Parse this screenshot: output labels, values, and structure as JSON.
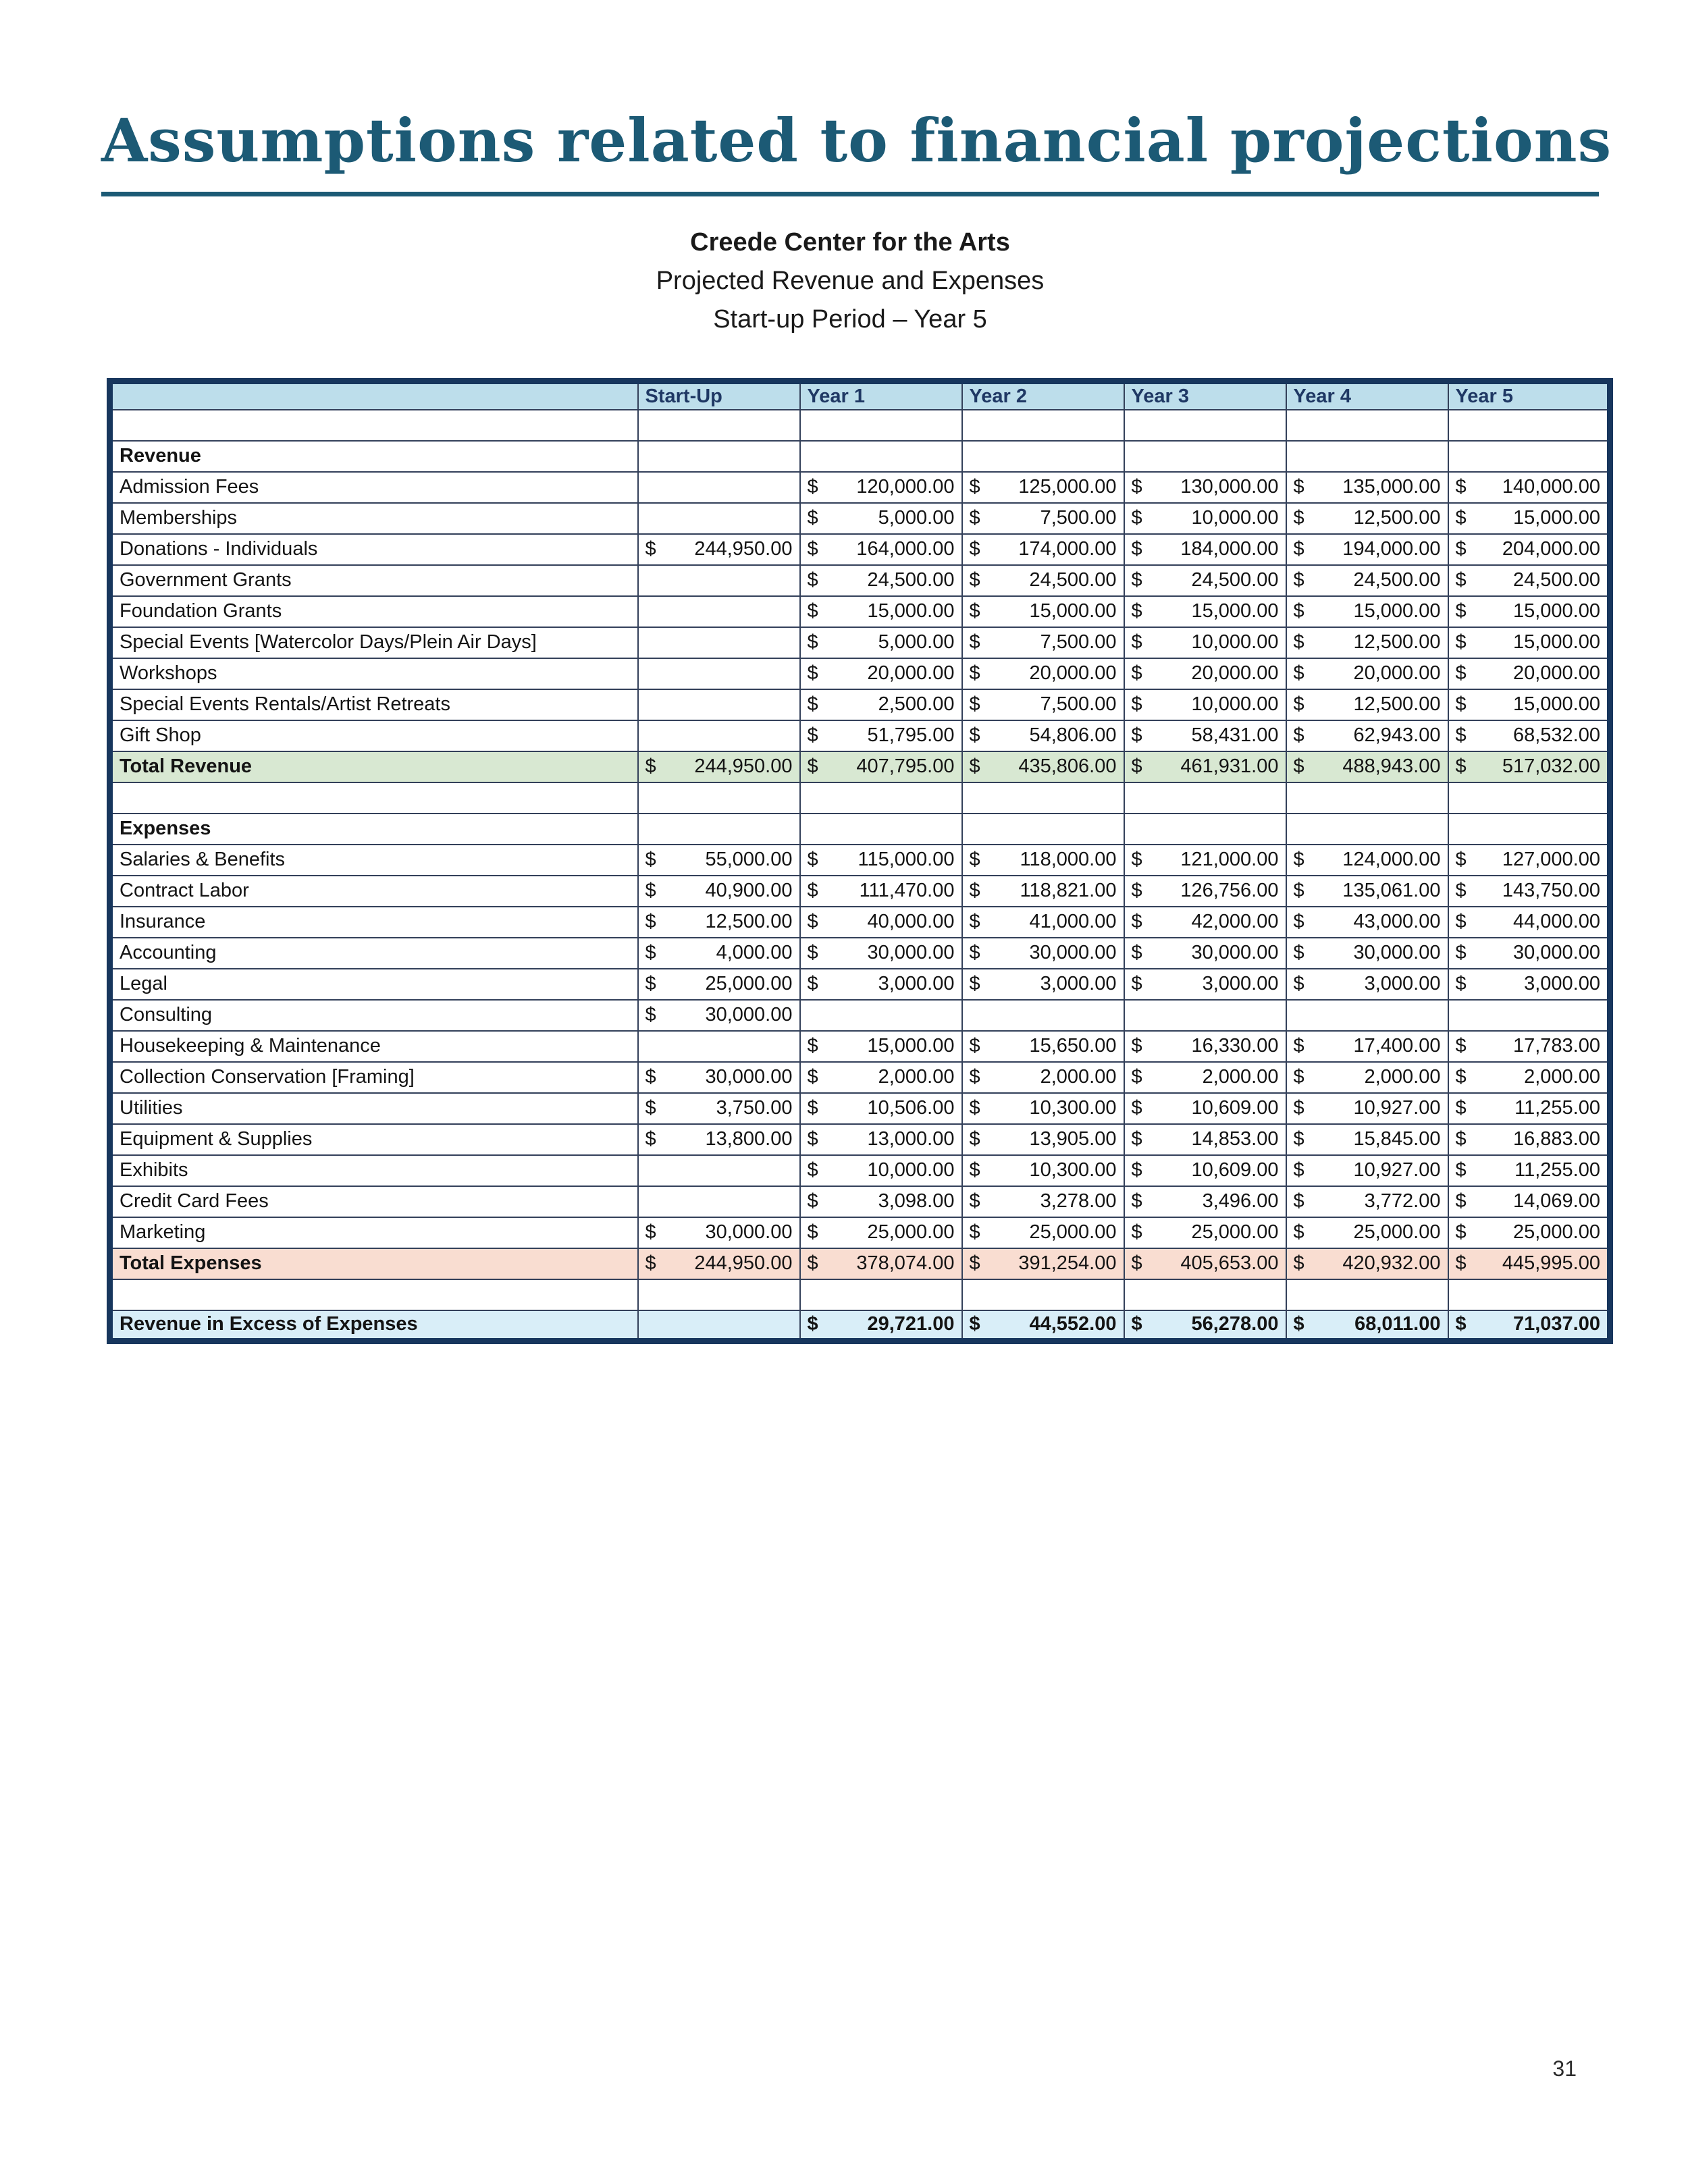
{
  "page": {
    "title": "Assumptions related to financial projections",
    "page_number": "31"
  },
  "subtitle": {
    "org": "Creede Center for the Arts",
    "report": "Projected Revenue and Expenses",
    "period": "Start-up Period – Year 5"
  },
  "colors": {
    "accent": "#1c5a75",
    "header_bg": "#bddeeb",
    "header_text": "#1f3864",
    "total_revenue_bg": "#d8e8d2",
    "total_expenses_bg": "#f9ddd1",
    "excess_bg": "#d9eef8",
    "border_outer": "#17365d",
    "grid": "#33405a"
  },
  "table": {
    "currency": "$",
    "columns": [
      "",
      "Start-Up",
      "Year 1",
      "Year 2",
      "Year 3",
      "Year 4",
      "Year 5"
    ],
    "rows": [
      {
        "type": "spacer",
        "label": "",
        "values": [
          "",
          "",
          "",
          "",
          "",
          ""
        ]
      },
      {
        "type": "section",
        "label": "Revenue",
        "values": [
          "",
          "",
          "",
          "",
          "",
          ""
        ]
      },
      {
        "type": "data",
        "label": "Admission Fees",
        "values": [
          "",
          "120,000.00",
          "125,000.00",
          "130,000.00",
          "135,000.00",
          "140,000.00"
        ]
      },
      {
        "type": "data",
        "label": "Memberships",
        "values": [
          "",
          "5,000.00",
          "7,500.00",
          "10,000.00",
          "12,500.00",
          "15,000.00"
        ]
      },
      {
        "type": "data",
        "label": "Donations - Individuals",
        "values": [
          "244,950.00",
          "164,000.00",
          "174,000.00",
          "184,000.00",
          "194,000.00",
          "204,000.00"
        ]
      },
      {
        "type": "data",
        "label": "Government Grants",
        "values": [
          "",
          "24,500.00",
          "24,500.00",
          "24,500.00",
          "24,500.00",
          "24,500.00"
        ]
      },
      {
        "type": "data",
        "label": "Foundation Grants",
        "values": [
          "",
          "15,000.00",
          "15,000.00",
          "15,000.00",
          "15,000.00",
          "15,000.00"
        ]
      },
      {
        "type": "data",
        "label": "Special Events [Watercolor Days/Plein Air Days]",
        "values": [
          "",
          "5,000.00",
          "7,500.00",
          "10,000.00",
          "12,500.00",
          "15,000.00"
        ]
      },
      {
        "type": "data",
        "label": "Workshops",
        "values": [
          "",
          "20,000.00",
          "20,000.00",
          "20,000.00",
          "20,000.00",
          "20,000.00"
        ]
      },
      {
        "type": "data",
        "label": "Special Events Rentals/Artist Retreats",
        "values": [
          "",
          "2,500.00",
          "7,500.00",
          "10,000.00",
          "12,500.00",
          "15,000.00"
        ]
      },
      {
        "type": "data",
        "label": "Gift Shop",
        "values": [
          "",
          "51,795.00",
          "54,806.00",
          "58,431.00",
          "62,943.00",
          "68,532.00"
        ]
      },
      {
        "type": "total_revenue",
        "label": "Total Revenue",
        "values": [
          "244,950.00",
          "407,795.00",
          "435,806.00",
          "461,931.00",
          "488,943.00",
          "517,032.00"
        ]
      },
      {
        "type": "spacer",
        "label": "",
        "values": [
          "",
          "",
          "",
          "",
          "",
          ""
        ]
      },
      {
        "type": "section",
        "label": "Expenses",
        "values": [
          "",
          "",
          "",
          "",
          "",
          ""
        ]
      },
      {
        "type": "data",
        "label": "Salaries & Benefits",
        "values": [
          "55,000.00",
          "115,000.00",
          "118,000.00",
          "121,000.00",
          "124,000.00",
          "127,000.00"
        ]
      },
      {
        "type": "data",
        "label": "Contract Labor",
        "values": [
          "40,900.00",
          "111,470.00",
          "118,821.00",
          "126,756.00",
          "135,061.00",
          "143,750.00"
        ]
      },
      {
        "type": "data",
        "label": "Insurance",
        "values": [
          "12,500.00",
          "40,000.00",
          "41,000.00",
          "42,000.00",
          "43,000.00",
          "44,000.00"
        ]
      },
      {
        "type": "data",
        "label": "Accounting",
        "values": [
          "4,000.00",
          "30,000.00",
          "30,000.00",
          "30,000.00",
          "30,000.00",
          "30,000.00"
        ]
      },
      {
        "type": "data",
        "label": "Legal",
        "values": [
          "25,000.00",
          "3,000.00",
          "3,000.00",
          "3,000.00",
          "3,000.00",
          "3,000.00"
        ]
      },
      {
        "type": "data",
        "label": "Consulting",
        "values": [
          "30,000.00",
          "",
          "",
          "",
          "",
          ""
        ]
      },
      {
        "type": "data",
        "label": "Housekeeping & Maintenance",
        "values": [
          "",
          "15,000.00",
          "15,650.00",
          "16,330.00",
          "17,400.00",
          "17,783.00"
        ]
      },
      {
        "type": "data",
        "label": "Collection Conservation [Framing]",
        "values": [
          "30,000.00",
          "2,000.00",
          "2,000.00",
          "2,000.00",
          "2,000.00",
          "2,000.00"
        ]
      },
      {
        "type": "data",
        "label": "Utilities",
        "values": [
          "3,750.00",
          "10,506.00",
          "10,300.00",
          "10,609.00",
          "10,927.00",
          "11,255.00"
        ]
      },
      {
        "type": "data",
        "label": "Equipment & Supplies",
        "values": [
          "13,800.00",
          "13,000.00",
          "13,905.00",
          "14,853.00",
          "15,845.00",
          "16,883.00"
        ]
      },
      {
        "type": "data",
        "label": "Exhibits",
        "values": [
          "",
          "10,000.00",
          "10,300.00",
          "10,609.00",
          "10,927.00",
          "11,255.00"
        ]
      },
      {
        "type": "data",
        "label": "Credit Card Fees",
        "values": [
          "",
          "3,098.00",
          "3,278.00",
          "3,496.00",
          "3,772.00",
          "14,069.00"
        ]
      },
      {
        "type": "data",
        "label": "Marketing",
        "values": [
          "30,000.00",
          "25,000.00",
          "25,000.00",
          "25,000.00",
          "25,000.00",
          "25,000.00"
        ]
      },
      {
        "type": "total_expenses",
        "label": "Total Expenses",
        "values": [
          "244,950.00",
          "378,074.00",
          "391,254.00",
          "405,653.00",
          "420,932.00",
          "445,995.00"
        ]
      },
      {
        "type": "spacer",
        "label": "",
        "values": [
          "",
          "",
          "",
          "",
          "",
          ""
        ]
      },
      {
        "type": "excess",
        "label": "Revenue in Excess of Expenses",
        "values": [
          "",
          "29,721.00",
          "44,552.00",
          "56,278.00",
          "68,011.00",
          "71,037.00"
        ]
      }
    ]
  }
}
